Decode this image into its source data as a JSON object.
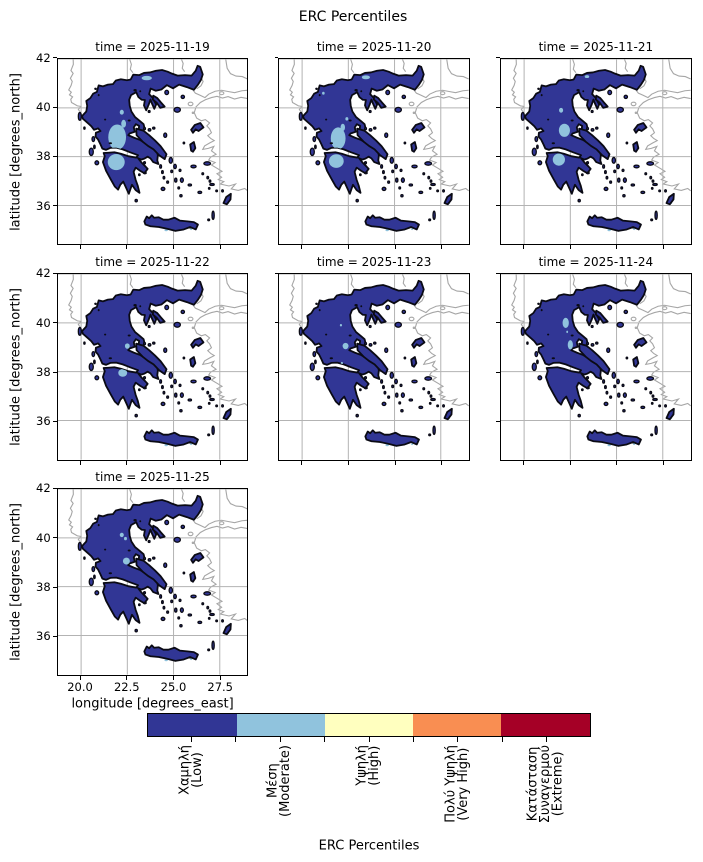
{
  "figure": {
    "suptitle": "ERC Percentiles"
  },
  "chart_data": {
    "type": "heatmap",
    "title": "ERC Percentiles",
    "xlabel": "longitude [degrees_east]",
    "ylabel": "latitude [degrees_north]",
    "xticks": [
      "20.0",
      "22.5",
      "25.0",
      "27.5"
    ],
    "yticks": [
      "42",
      "40",
      "38",
      "36"
    ],
    "xtick_lons": [
      20,
      22.5,
      25,
      27.5
    ],
    "ytick_lats": [
      42,
      40,
      38,
      36
    ],
    "lon_extent": [
      18.75,
      29.0
    ],
    "lat_extent": [
      34.4,
      42.0
    ],
    "grid": true,
    "region": "Greece",
    "dominant_category": "Χαμηλή (Low)",
    "facets": [
      {
        "title": "time = 2025-11-19",
        "moderate_patches": [
          [
            21.95,
            38.8,
            0.48,
            0.52
          ],
          [
            22.3,
            39.35,
            0.13,
            0.16
          ],
          [
            22.2,
            39.82,
            0.11,
            0.1
          ],
          [
            21.9,
            37.78,
            0.46,
            0.33
          ],
          [
            23.55,
            41.22,
            0.28,
            0.09
          ]
        ]
      },
      {
        "title": "time = 2025-11-20",
        "moderate_patches": [
          [
            21.95,
            38.75,
            0.4,
            0.45
          ],
          [
            22.2,
            39.2,
            0.12,
            0.15
          ],
          [
            21.85,
            37.82,
            0.4,
            0.28
          ],
          [
            23.45,
            41.25,
            0.22,
            0.08
          ],
          [
            21.15,
            40.6,
            0.07,
            0.06
          ],
          [
            22.42,
            39.55,
            0.08,
            0.07
          ]
        ]
      },
      {
        "title": "time = 2025-11-21",
        "moderate_patches": [
          [
            22.18,
            39.08,
            0.3,
            0.27
          ],
          [
            21.88,
            37.88,
            0.33,
            0.25
          ],
          [
            22.0,
            39.9,
            0.11,
            0.1
          ],
          [
            23.4,
            41.28,
            0.12,
            0.06
          ]
        ]
      },
      {
        "title": "time = 2025-11-22",
        "moderate_patches": [
          [
            22.5,
            39.05,
            0.13,
            0.11
          ],
          [
            22.25,
            37.95,
            0.24,
            0.16
          ]
        ]
      },
      {
        "title": "time = 2025-11-23",
        "moderate_patches": [
          [
            22.35,
            39.05,
            0.16,
            0.13
          ],
          [
            22.1,
            39.9,
            0.06,
            0.05
          ],
          [
            22.15,
            38.35,
            0.06,
            0.05
          ]
        ]
      },
      {
        "title": "time = 2025-11-24",
        "moderate_patches": [
          [
            22.25,
            40.0,
            0.17,
            0.21
          ],
          [
            22.5,
            39.1,
            0.14,
            0.19
          ],
          [
            22.33,
            39.63,
            0.05,
            0.05
          ]
        ]
      },
      {
        "title": "time = 2025-11-25",
        "moderate_patches": [
          [
            22.2,
            40.12,
            0.11,
            0.09
          ],
          [
            22.4,
            39.97,
            0.08,
            0.07
          ],
          [
            22.45,
            39.05,
            0.19,
            0.14
          ]
        ]
      }
    ],
    "legend": {
      "label": "ERC Percentiles",
      "position": "bottom",
      "categories": [
        {
          "lines": [
            "Χαμηλή",
            "(Low)"
          ],
          "color": "#313695"
        },
        {
          "lines": [
            "Μέση",
            "(Moderate)"
          ],
          "color": "#90c3dd"
        },
        {
          "lines": [
            "Υψηλή",
            "(High)"
          ],
          "color": "#ffffbf"
        },
        {
          "lines": [
            "Πολύ Υψηλή",
            "(Very High)"
          ],
          "color": "#f98e52"
        },
        {
          "lines": [
            "Κατάσταση",
            "Συναγερμού",
            "(Extreme)"
          ],
          "color": "#a50026"
        }
      ]
    },
    "colors": {
      "low": "#313695",
      "moderate": "#90c3dd",
      "coast": "#a6a6a6",
      "outline": "#0a0a14",
      "grid": "#b3b3b3"
    }
  }
}
